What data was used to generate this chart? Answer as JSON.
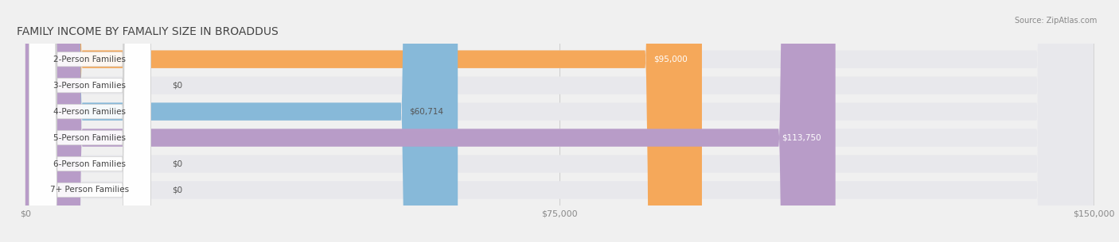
{
  "title": "FAMILY INCOME BY FAMALIY SIZE IN BROADDUS",
  "source": "Source: ZipAtlas.com",
  "categories": [
    "2-Person Families",
    "3-Person Families",
    "4-Person Families",
    "5-Person Families",
    "6-Person Families",
    "7+ Person Families"
  ],
  "values": [
    95000,
    0,
    60714,
    113750,
    0,
    0
  ],
  "bar_colors": [
    "#f5a85a",
    "#f08080",
    "#87b9d9",
    "#b89cc8",
    "#7ecfc4",
    "#b0b8d8"
  ],
  "label_colors": [
    "#ffffff",
    "#555555",
    "#555555",
    "#ffffff",
    "#555555",
    "#555555"
  ],
  "xlim": [
    0,
    150000
  ],
  "xticks": [
    0,
    75000,
    150000
  ],
  "xticklabels": [
    "$0",
    "$75,000",
    "$150,000"
  ],
  "value_labels": [
    "$95,000",
    "$0",
    "$60,714",
    "$113,750",
    "$0",
    "$0"
  ],
  "background_color": "#f0f0f0",
  "bar_bg_color": "#e8e8ec",
  "title_fontsize": 10,
  "label_fontsize": 7.5,
  "value_fontsize": 7.5,
  "tick_fontsize": 8
}
